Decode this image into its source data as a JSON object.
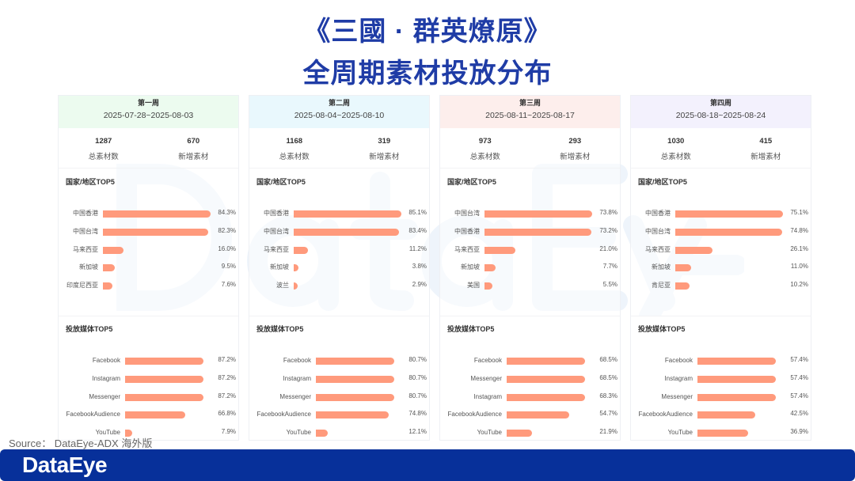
{
  "title_line1": "《三國 · 群英燎原》",
  "title_line2": "全周期素材投放分布",
  "watermark": "DataEye",
  "source": "Source： DataEye-ADX 海外版",
  "footer_logo": "DataEye",
  "colors": {
    "bar": "#ff8f6e",
    "title": "#1f3ca6",
    "footer": "#07309a"
  },
  "labels": {
    "total": "总素材数",
    "new": "新增素材",
    "country_title": "国家/地区TOP5",
    "media_title": "投放媒体TOP5"
  },
  "weeks": [
    {
      "name": "第一周",
      "range": "2025-07-28~2025-08-03",
      "header_color": "#ecfbef",
      "total": "1287",
      "new": "670",
      "countries": [
        [
          "中国香港",
          84.3
        ],
        [
          "中国台湾",
          82.3
        ],
        [
          "马来西亚",
          16.0
        ],
        [
          "新加坡",
          9.5
        ],
        [
          "印度尼西亚",
          7.6
        ]
      ],
      "media": [
        [
          "Facebook",
          87.2
        ],
        [
          "Instagram",
          87.2
        ],
        [
          "Messenger",
          87.2
        ],
        [
          "FacebookAudience",
          66.8
        ],
        [
          "YouTube",
          7.9
        ]
      ]
    },
    {
      "name": "第二周",
      "range": "2025-08-04~2025-08-10",
      "header_color": "#e9f8fd",
      "total": "1168",
      "new": "319",
      "countries": [
        [
          "中国香港",
          85.1
        ],
        [
          "中国台湾",
          83.4
        ],
        [
          "马来西亚",
          11.2
        ],
        [
          "新加坡",
          3.8
        ],
        [
          "波兰",
          2.9
        ]
      ],
      "media": [
        [
          "Facebook",
          80.7
        ],
        [
          "Instagram",
          80.7
        ],
        [
          "Messenger",
          80.7
        ],
        [
          "FacebookAudience",
          74.8
        ],
        [
          "YouTube",
          12.1
        ]
      ]
    },
    {
      "name": "第三周",
      "range": "2025-08-11~2025-08-17",
      "header_color": "#fdeeec",
      "total": "973",
      "new": "293",
      "countries": [
        [
          "中国台湾",
          73.8
        ],
        [
          "中国香港",
          73.2
        ],
        [
          "马来西亚",
          21.0
        ],
        [
          "新加坡",
          7.7
        ],
        [
          "美国",
          5.5
        ]
      ],
      "media": [
        [
          "Facebook",
          68.5
        ],
        [
          "Messenger",
          68.5
        ],
        [
          "Instagram",
          68.3
        ],
        [
          "FacebookAudience",
          54.7
        ],
        [
          "YouTube",
          21.9
        ]
      ]
    },
    {
      "name": "第四周",
      "range": "2025-08-18~2025-08-24",
      "header_color": "#f3f1fd",
      "total": "1030",
      "new": "415",
      "countries": [
        [
          "中国香港",
          75.1
        ],
        [
          "中国台湾",
          74.8
        ],
        [
          "马来西亚",
          26.1
        ],
        [
          "新加坡",
          11.0
        ],
        [
          "肯尼亚",
          10.2
        ]
      ],
      "media": [
        [
          "Facebook",
          57.4
        ],
        [
          "Instagram",
          57.4
        ],
        [
          "Messenger",
          57.4
        ],
        [
          "FacebookAudience",
          42.5
        ],
        [
          "YouTube",
          36.9
        ]
      ]
    }
  ]
}
